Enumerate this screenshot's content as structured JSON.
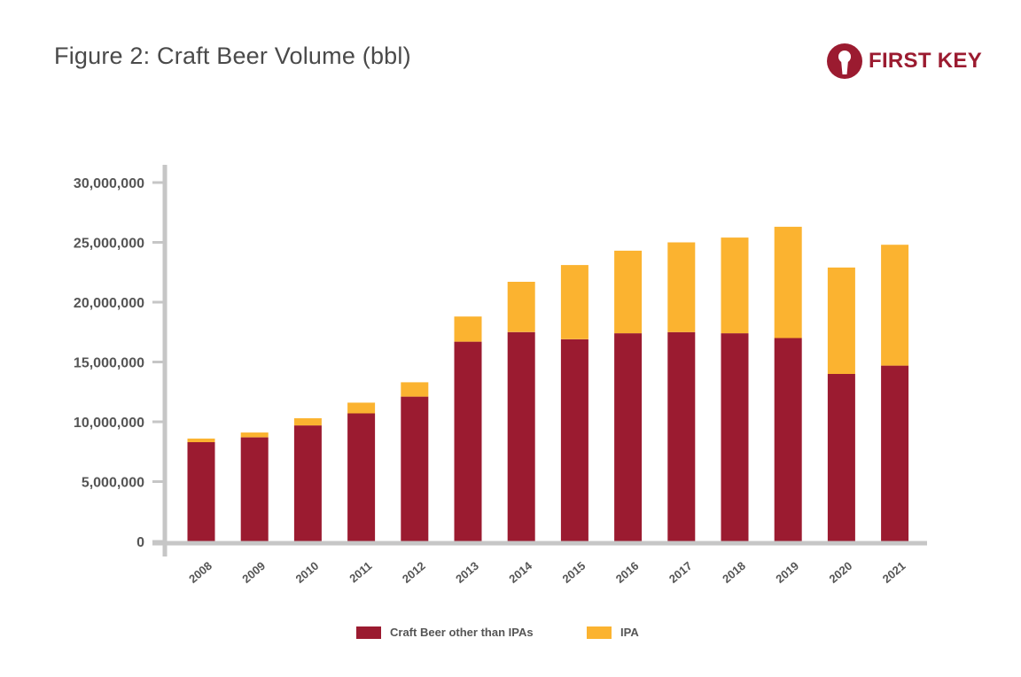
{
  "title": "Figure 2: Craft Beer Volume (bbl)",
  "logo": {
    "text": "FIRST KEY",
    "icon": "keyhole-icon",
    "color": "#9b1b30"
  },
  "chart_data": {
    "type": "bar",
    "stacked": true,
    "categories": [
      "2008",
      "2009",
      "2010",
      "2011",
      "2012",
      "2013",
      "2014",
      "2015",
      "2016",
      "2017",
      "2018",
      "2019",
      "2020",
      "2021"
    ],
    "series": [
      {
        "name": "Craft Beer other than IPAs",
        "color": "#9b1b30",
        "values": [
          8300000,
          8700000,
          9700000,
          10700000,
          12100000,
          16700000,
          17500000,
          16900000,
          17400000,
          17500000,
          17400000,
          17000000,
          14000000,
          14700000
        ]
      },
      {
        "name": "IPA",
        "color": "#fbb330",
        "values": [
          300000,
          400000,
          600000,
          900000,
          1200000,
          2100000,
          4200000,
          6200000,
          6900000,
          7500000,
          8000000,
          9300000,
          8900000,
          10100000
        ]
      }
    ],
    "yticks": [
      "0",
      "5,000,000",
      "10,000,000",
      "15,000,000",
      "20,000,000",
      "25,000,000",
      "30,000,000"
    ],
    "ylim": [
      0,
      30000000
    ],
    "xlabel": "",
    "ylabel": "",
    "grid": false,
    "legend_position": "bottom"
  }
}
